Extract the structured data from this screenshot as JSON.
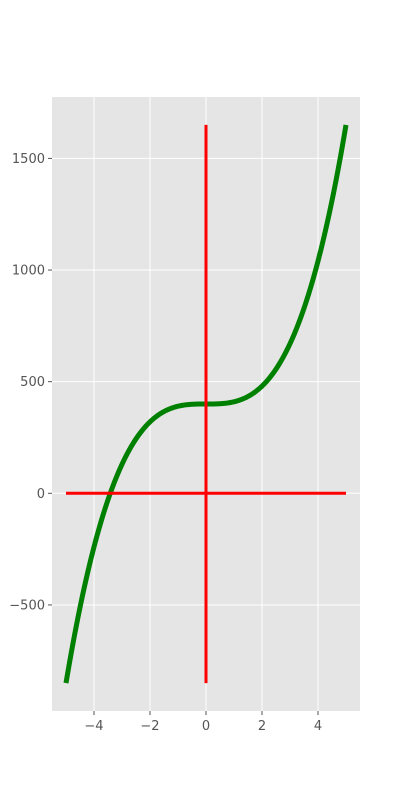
{
  "chart_data": {
    "type": "line",
    "title": "",
    "xlabel": "",
    "ylabel": "",
    "style": "ggplot",
    "grid": true,
    "xlim": [
      -5.5,
      5.5
    ],
    "ylim": [
      -975,
      1775
    ],
    "x_ticks": [
      -4,
      -2,
      0,
      2,
      4
    ],
    "x_tick_labels": [
      "−4",
      "−2",
      "0",
      "2",
      "4"
    ],
    "y_ticks": [
      -500,
      0,
      500,
      1000,
      1500
    ],
    "y_tick_labels": [
      "−500",
      "0",
      "500",
      "1000",
      "1500"
    ],
    "series": [
      {
        "function": "y = 10*x^3 + 400",
        "x_range": [
          -5,
          5
        ],
        "color": "#008000",
        "x": [
          -5,
          -4.5,
          -4,
          -3.5,
          -3,
          -2.5,
          -2,
          -1.5,
          -1,
          -0.5,
          0,
          0.5,
          1,
          1.5,
          2,
          2.5,
          3,
          3.5,
          4,
          4.5,
          5
        ],
        "y": [
          -850,
          -511.25,
          -240,
          -28.75,
          130,
          243.75,
          320,
          366.25,
          390,
          398.75,
          400,
          401.25,
          410,
          433.75,
          480,
          556.25,
          670,
          828.75,
          1040,
          1311.25,
          1650
        ]
      }
    ],
    "reference_lines": [
      {
        "orientation": "horizontal",
        "x": [
          -5,
          5
        ],
        "y": [
          0,
          0
        ],
        "color": "#ff0000"
      },
      {
        "orientation": "vertical",
        "x": [
          0,
          0
        ],
        "y": [
          -850,
          1650
        ],
        "color": "#ff0000"
      }
    ],
    "colors": {
      "background": "#e5e5e5",
      "grid": "#ffffff",
      "tick_label": "#555555"
    }
  }
}
